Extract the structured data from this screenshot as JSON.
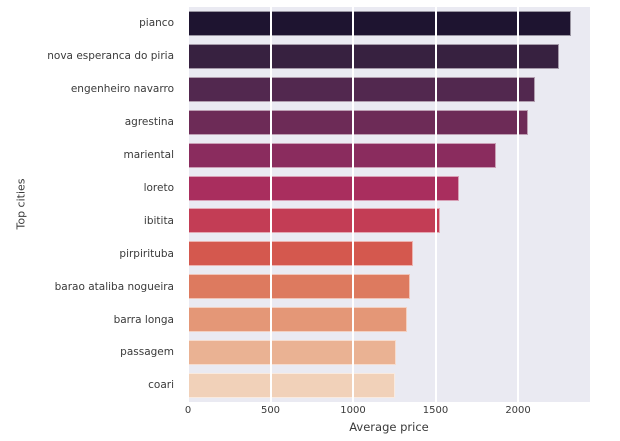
{
  "chart_data": {
    "type": "bar",
    "orientation": "horizontal",
    "title": "",
    "xlabel": "Average price",
    "ylabel": "Top cities",
    "categories": [
      "pianco",
      "nova esperanca do piria",
      "engenheiro navarro",
      "agrestina",
      "mariental",
      "loreto",
      "ibitita",
      "pirpirituba",
      "barao ataliba nogueira",
      "barra longa",
      "passagem",
      "coari"
    ],
    "values": [
      2320,
      2250,
      2100,
      2060,
      1865,
      1640,
      1530,
      1365,
      1345,
      1330,
      1260,
      1255
    ],
    "bar_colors": [
      "#1e1430",
      "#372140",
      "#52284f",
      "#6d2b57",
      "#8a2c5e",
      "#a92e5e",
      "#c33d55",
      "#d4584e",
      "#dd7a5f",
      "#e49777",
      "#eab293",
      "#f1d1b9"
    ],
    "xlim": [
      0,
      2436
    ],
    "xticks": [
      0,
      500,
      1000,
      1500,
      2000
    ],
    "grid": true,
    "legend_position": "none",
    "plot_bg_color": "#eaeaf2",
    "grid_color": "#ffffff",
    "text_color": "#3a3a3a"
  }
}
